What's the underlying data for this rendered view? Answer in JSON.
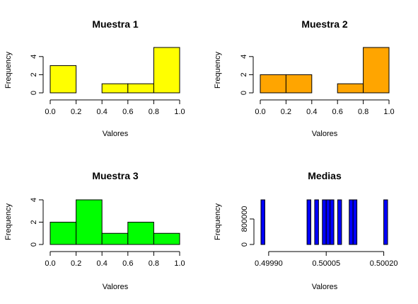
{
  "chart_data": [
    {
      "type": "bar",
      "title": "Muestra 1",
      "xlabel": "Valores",
      "ylabel": "Frequency",
      "color": "#FFFF00",
      "bins": [
        [
          0.0,
          0.2
        ],
        [
          0.2,
          0.4
        ],
        [
          0.4,
          0.6
        ],
        [
          0.6,
          0.8
        ],
        [
          0.8,
          1.0
        ]
      ],
      "values": [
        3,
        0,
        1,
        1,
        5
      ],
      "xlim": [
        0,
        1
      ],
      "ylim": [
        0,
        5
      ],
      "xticks": [
        0.0,
        0.2,
        0.4,
        0.6,
        0.8,
        1.0
      ],
      "xtick_labels": [
        "0.0",
        "0.2",
        "0.4",
        "0.6",
        "0.8",
        "1.0"
      ],
      "yticks": [
        0,
        2,
        4
      ],
      "ytick_labels": [
        "0",
        "2",
        "4"
      ]
    },
    {
      "type": "bar",
      "title": "Muestra 2",
      "xlabel": "Valores",
      "ylabel": "Frequency",
      "color": "#FFA500",
      "bins": [
        [
          0.0,
          0.2
        ],
        [
          0.2,
          0.4
        ],
        [
          0.4,
          0.6
        ],
        [
          0.6,
          0.8
        ],
        [
          0.8,
          1.0
        ]
      ],
      "values": [
        2,
        2,
        0,
        1,
        5
      ],
      "xlim": [
        0,
        1
      ],
      "ylim": [
        0,
        5
      ],
      "xticks": [
        0.0,
        0.2,
        0.4,
        0.6,
        0.8,
        1.0
      ],
      "xtick_labels": [
        "0.0",
        "0.2",
        "0.4",
        "0.6",
        "0.8",
        "1.0"
      ],
      "yticks": [
        0,
        2,
        4
      ],
      "ytick_labels": [
        "0",
        "2",
        "4"
      ]
    },
    {
      "type": "bar",
      "title": "Muestra 3",
      "xlabel": "Valores",
      "ylabel": "Frequency",
      "color": "#00FF00",
      "bins": [
        [
          0.0,
          0.2
        ],
        [
          0.2,
          0.4
        ],
        [
          0.4,
          0.6
        ],
        [
          0.6,
          0.8
        ],
        [
          0.8,
          1.0
        ]
      ],
      "values": [
        2,
        4,
        1,
        2,
        1
      ],
      "xlim": [
        0,
        1
      ],
      "ylim": [
        0,
        4
      ],
      "xticks": [
        0.0,
        0.2,
        0.4,
        0.6,
        0.8,
        1.0
      ],
      "xtick_labels": [
        "0.0",
        "0.2",
        "0.4",
        "0.6",
        "0.8",
        "1.0"
      ],
      "yticks": [
        0,
        2,
        4
      ],
      "ytick_labels": [
        "0",
        "2",
        "4"
      ]
    },
    {
      "type": "bar",
      "title": "Medias",
      "xlabel": "Valores",
      "ylabel": "Frequency",
      "color": "#0000FF",
      "bins": [
        [
          0.49988,
          0.49989
        ],
        [
          0.49989,
          0.4999
        ],
        [
          0.4999,
          0.49991
        ],
        [
          0.49991,
          0.49992
        ],
        [
          0.49992,
          0.49993
        ],
        [
          0.49993,
          0.49994
        ],
        [
          0.49994,
          0.49995
        ],
        [
          0.49995,
          0.49996
        ],
        [
          0.49996,
          0.49997
        ],
        [
          0.49997,
          0.49998
        ],
        [
          0.49998,
          0.49999
        ],
        [
          0.49999,
          0.5
        ],
        [
          0.5,
          0.50001
        ],
        [
          0.50001,
          0.50002
        ],
        [
          0.50002,
          0.50003
        ],
        [
          0.50003,
          0.50004
        ],
        [
          0.50004,
          0.50005
        ],
        [
          0.50005,
          0.50006
        ],
        [
          0.50006,
          0.50007
        ],
        [
          0.50007,
          0.50008
        ],
        [
          0.50008,
          0.50009
        ],
        [
          0.50009,
          0.5001
        ],
        [
          0.5001,
          0.50011
        ],
        [
          0.50011,
          0.50012
        ],
        [
          0.50012,
          0.50013
        ],
        [
          0.50013,
          0.50014
        ],
        [
          0.50014,
          0.50015
        ],
        [
          0.50015,
          0.50016
        ],
        [
          0.50016,
          0.50017
        ],
        [
          0.50017,
          0.50018
        ],
        [
          0.50018,
          0.50019
        ],
        [
          0.50019,
          0.5002
        ],
        [
          0.5002,
          0.50021
        ]
      ],
      "values": [
        1400000,
        0,
        0,
        0,
        0,
        0,
        0,
        0,
        0,
        0,
        0,
        0,
        1400000,
        0,
        1400000,
        0,
        1400000,
        1400000,
        1400000,
        0,
        1400000,
        0,
        0,
        1400000,
        1400000,
        0,
        0,
        0,
        0,
        0,
        0,
        0,
        1400000
      ],
      "xlim": [
        0.49988,
        0.50021
      ],
      "ylim": [
        0,
        1400000
      ],
      "xticks": [
        0.4999,
        0.50005,
        0.5002
      ],
      "xtick_labels": [
        "0.49990",
        "0.50005",
        "0.50020"
      ],
      "yticks": [
        0,
        800000
      ],
      "ytick_labels": [
        "0",
        "800000"
      ]
    }
  ]
}
